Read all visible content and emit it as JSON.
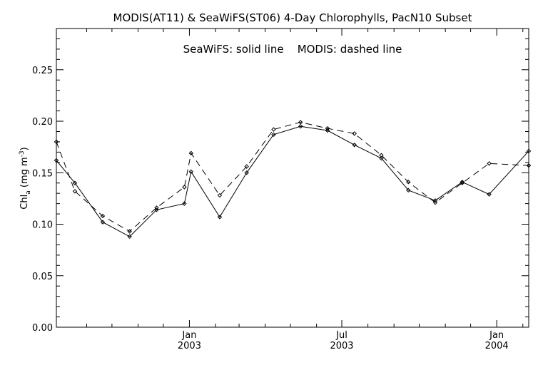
{
  "chart_data": {
    "type": "line",
    "title": "MODIS(AT11) & SeaWiFS(ST06) 4-Day Chlorophylls, PacN10 Subset",
    "subtitle": "SeaWiFS: solid line    MODIS: dashed line",
    "ylabel": {
      "main": "Chl",
      "sub": "a",
      "unit_open": " (mg m",
      "sup": "-3",
      "unit_close": ")"
    },
    "xlabel": "",
    "ylim": [
      0.0,
      0.29
    ],
    "xlim": [
      "2002-07-27",
      "2004-02-08"
    ],
    "y_ticks": [
      {
        "value": 0.0,
        "label": "0.00"
      },
      {
        "value": 0.05,
        "label": "0.05"
      },
      {
        "value": 0.1,
        "label": "0.10"
      },
      {
        "value": 0.15,
        "label": "0.15"
      },
      {
        "value": 0.2,
        "label": "0.20"
      },
      {
        "value": 0.25,
        "label": "0.25"
      }
    ],
    "x_ticks": [
      {
        "date": "2003-01-01",
        "month": "Jan",
        "year": "2003"
      },
      {
        "date": "2003-07-01",
        "month": "Jul",
        "year": "2003"
      },
      {
        "date": "2004-01-01",
        "month": "Jan",
        "year": "2004"
      }
    ],
    "x_minor_tick_dates": [
      "2002-09-01",
      "2002-10-01",
      "2002-11-01",
      "2002-12-01",
      "2003-02-01",
      "2003-03-01",
      "2003-04-01",
      "2003-05-01",
      "2003-06-01",
      "2003-08-01",
      "2003-09-01",
      "2003-10-01",
      "2003-11-01",
      "2003-12-01",
      "2004-02-01"
    ],
    "series": [
      {
        "style": "solid",
        "color": "#000000",
        "x": [
          "2002-07-27",
          "2002-08-18",
          "2002-09-20",
          "2002-10-22",
          "2002-11-23",
          "2002-12-26",
          "2003-01-03",
          "2003-02-06",
          "2003-03-10",
          "2003-04-11",
          "2003-05-13",
          "2003-06-14",
          "2003-07-16",
          "2003-08-17",
          "2003-09-18",
          "2003-10-20",
          "2003-11-21",
          "2003-12-23",
          "2004-02-08"
        ],
        "y": [
          0.162,
          0.14,
          0.102,
          0.088,
          0.114,
          0.12,
          0.151,
          0.107,
          0.15,
          0.187,
          0.195,
          0.191,
          0.177,
          0.164,
          0.133,
          0.123,
          0.141,
          0.129,
          0.171
        ]
      },
      {
        "style": "dashed",
        "color": "#000000",
        "x": [
          "2002-07-27",
          "2002-08-18",
          "2002-09-20",
          "2002-10-22",
          "2002-11-23",
          "2002-12-26",
          "2003-01-03",
          "2003-02-06",
          "2003-03-10",
          "2003-04-11",
          "2003-05-13",
          "2003-06-14",
          "2003-07-16",
          "2003-08-17",
          "2003-09-18",
          "2003-10-20",
          "2003-11-21",
          "2003-12-23",
          "2004-02-08"
        ],
        "y": [
          0.18,
          0.132,
          0.108,
          0.093,
          0.116,
          0.136,
          0.169,
          0.128,
          0.156,
          0.192,
          0.199,
          0.193,
          0.188,
          0.167,
          0.141,
          0.121,
          0.14,
          0.159,
          0.157
        ]
      }
    ],
    "grid": false,
    "legend": "none"
  }
}
